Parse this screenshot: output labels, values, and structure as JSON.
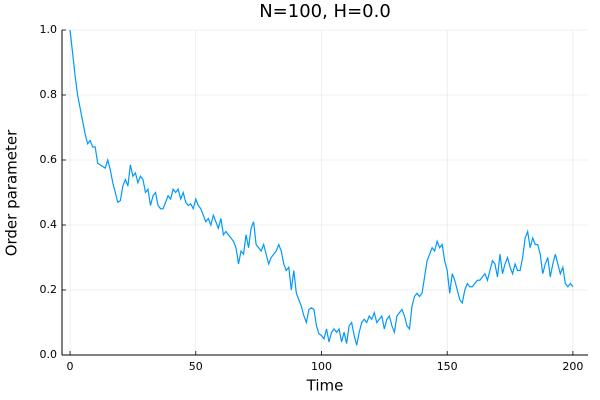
{
  "chart_data": {
    "type": "line",
    "title": "N=100, H=0.0",
    "x_label": "Time",
    "y_label": "Order parameter",
    "x": [
      0,
      1,
      2,
      3,
      4,
      5,
      6,
      7,
      8,
      9,
      10,
      11,
      12,
      13,
      14,
      15,
      16,
      17,
      18,
      19,
      20,
      21,
      22,
      23,
      24,
      25,
      26,
      27,
      28,
      29,
      30,
      31,
      32,
      33,
      34,
      35,
      36,
      37,
      38,
      39,
      40,
      41,
      42,
      43,
      44,
      45,
      46,
      47,
      48,
      49,
      50,
      51,
      52,
      53,
      54,
      55,
      56,
      57,
      58,
      59,
      60,
      61,
      62,
      63,
      64,
      65,
      66,
      67,
      68,
      69,
      70,
      71,
      72,
      73,
      74,
      75,
      76,
      77,
      78,
      79,
      80,
      81,
      82,
      83,
      84,
      85,
      86,
      87,
      88,
      89,
      90,
      91,
      92,
      93,
      94,
      95,
      96,
      97,
      98,
      99,
      100,
      101,
      102,
      103,
      104,
      105,
      106,
      107,
      108,
      109,
      110,
      111,
      112,
      113,
      114,
      115,
      116,
      117,
      118,
      119,
      120,
      121,
      122,
      123,
      124,
      125,
      126,
      127,
      128,
      129,
      130,
      131,
      132,
      133,
      134,
      135,
      136,
      137,
      138,
      139,
      140,
      141,
      142,
      143,
      144,
      145,
      146,
      147,
      148,
      149,
      150,
      151,
      152,
      153,
      154,
      155,
      156,
      157,
      158,
      159,
      160,
      161,
      162,
      163,
      164,
      165,
      166,
      167,
      168,
      169,
      170,
      171,
      172,
      173,
      174,
      175,
      176,
      177,
      178,
      179,
      180,
      181,
      182,
      183,
      184,
      185,
      186,
      187,
      188,
      189,
      190,
      191,
      192,
      193,
      194,
      195,
      196,
      197,
      198,
      199,
      200
    ],
    "series": [
      {
        "color": "#009afa",
        "values": [
          1.0,
          0.93,
          0.86,
          0.8,
          0.76,
          0.72,
          0.68,
          0.65,
          0.66,
          0.64,
          0.64,
          0.59,
          0.585,
          0.58,
          0.575,
          0.6,
          0.57,
          0.53,
          0.5,
          0.47,
          0.475,
          0.52,
          0.54,
          0.52,
          0.585,
          0.55,
          0.56,
          0.53,
          0.55,
          0.54,
          0.5,
          0.51,
          0.46,
          0.49,
          0.5,
          0.46,
          0.45,
          0.45,
          0.47,
          0.49,
          0.48,
          0.51,
          0.5,
          0.51,
          0.48,
          0.5,
          0.47,
          0.46,
          0.465,
          0.45,
          0.48,
          0.46,
          0.45,
          0.43,
          0.41,
          0.42,
          0.4,
          0.43,
          0.41,
          0.39,
          0.42,
          0.37,
          0.38,
          0.37,
          0.36,
          0.35,
          0.33,
          0.28,
          0.32,
          0.31,
          0.37,
          0.33,
          0.39,
          0.41,
          0.34,
          0.33,
          0.32,
          0.34,
          0.31,
          0.28,
          0.3,
          0.31,
          0.32,
          0.34,
          0.32,
          0.28,
          0.26,
          0.27,
          0.2,
          0.26,
          0.19,
          0.17,
          0.15,
          0.12,
          0.1,
          0.14,
          0.145,
          0.14,
          0.09,
          0.065,
          0.06,
          0.05,
          0.08,
          0.04,
          0.07,
          0.08,
          0.07,
          0.08,
          0.04,
          0.07,
          0.035,
          0.09,
          0.1,
          0.06,
          0.03,
          0.07,
          0.1,
          0.11,
          0.1,
          0.12,
          0.11,
          0.13,
          0.1,
          0.11,
          0.12,
          0.08,
          0.11,
          0.12,
          0.09,
          0.07,
          0.12,
          0.13,
          0.14,
          0.12,
          0.09,
          0.08,
          0.15,
          0.18,
          0.19,
          0.18,
          0.19,
          0.24,
          0.29,
          0.31,
          0.33,
          0.32,
          0.35,
          0.33,
          0.34,
          0.29,
          0.26,
          0.19,
          0.25,
          0.23,
          0.2,
          0.17,
          0.16,
          0.2,
          0.22,
          0.21,
          0.21,
          0.22,
          0.23,
          0.23,
          0.24,
          0.25,
          0.23,
          0.26,
          0.29,
          0.28,
          0.24,
          0.31,
          0.25,
          0.28,
          0.3,
          0.27,
          0.25,
          0.28,
          0.26,
          0.26,
          0.3,
          0.36,
          0.38,
          0.33,
          0.36,
          0.34,
          0.34,
          0.31,
          0.25,
          0.28,
          0.3,
          0.24,
          0.28,
          0.31,
          0.28,
          0.25,
          0.27,
          0.22,
          0.21,
          0.22,
          0.21
        ]
      }
    ],
    "xlim": [
      -3.2,
      206
    ],
    "ylim": [
      0,
      1
    ],
    "xticks": [
      0,
      50,
      100,
      150,
      200
    ],
    "yticks": [
      {
        "value": 0,
        "label": "0.0"
      },
      0.2,
      0.4,
      0.6,
      0.8,
      {
        "value": 1,
        "label": "1.0"
      }
    ],
    "grid": true
  }
}
